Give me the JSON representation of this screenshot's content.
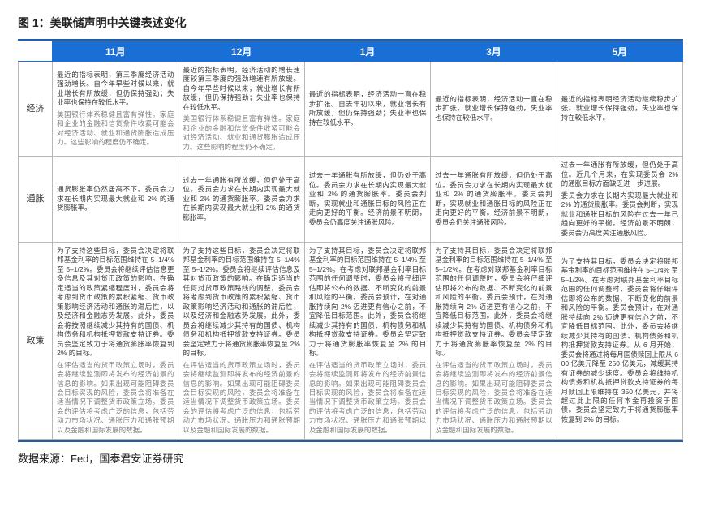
{
  "caption": "图 1：美联储声明中关键表述变化",
  "source": "数据来源：Fed，国泰君安证券研究",
  "colors": {
    "accent": "#1a6fd6",
    "frame": "#1a5fb4",
    "border": "#b8b8b8",
    "text": "#3a3a3a",
    "faded": "#7d7d7d",
    "background": "#ffffff"
  },
  "months": [
    "11月",
    "12月",
    "1月",
    "3月",
    "5月"
  ],
  "rows": [
    {
      "label": "经济",
      "cells": [
        [
          {
            "text": "最近的指标表明，第三季度经济活动强劲增长。自今年早些时候以来，就业增长有所放缓，但仍保持强劲；失业率也保持在较低水平。",
            "faded": false
          },
          {
            "text": "美国银行体系稳健且富有弹性。家庭和企业的金融和信贷条件收紧可能会对经济活动、就业和通货膨胀造成压力。这些影响的程度仍不确定。",
            "faded": true
          }
        ],
        [
          {
            "text": "最近的指标表明，经济活动的增长速度较第三季度的强劲增速有所放缓。自今年早些时候以来，就业增长有所放缓，但仍保持强劲；失业率也保持在较低水平。",
            "faded": false
          },
          {
            "text": "美国银行体系稳健且富有弹性。家庭和企业的金融和信贷条件收紧可能会对经济活动、就业和通货膨胀造成压力。这些影响的程度仍不确定。",
            "faded": true
          }
        ],
        [
          {
            "text": "最近的指标表明，经济活动一直在稳步扩张。自去年初以来，就业增长有所放缓，但仍保持强劲；失业率也保持在较低水平。",
            "faded": false
          }
        ],
        [
          {
            "text": "最近的指标表明，经济活动一直在稳步扩张。就业增长保持强劲，失业率也保持在较低水平。",
            "faded": false
          }
        ],
        [
          {
            "text": "最近的指标表明经济活动继续稳步扩张。就业增长保持强劲，失业率也保持在较低水平。",
            "faded": false
          }
        ]
      ]
    },
    {
      "label": "通胀",
      "cells": [
        [
          {
            "text": "通货膨胀率仍然居高不下。委员会力求在长期内实现最大就业和 2% 的通货膨胀率。",
            "faded": false
          }
        ],
        [
          {
            "text": "过去一年通胀有所放缓，但仍处于高位。委员会力求在长期内实现最大就业和 2% 的通货膨胀率。委员会力求在长期内实现最大就业和 2% 的通货膨胀率。",
            "faded": false
          }
        ],
        [
          {
            "text": "过去一年通胀有所放缓，但仍处于高位。委员会力求在长期内实现最大就业和 2% 的通货膨胀率。委员会判断，实现就业和通胀目标的风险正在走向更好的平衡。经济前景不明朗，委员会仍高度关注通胀风险。",
            "faded": false
          }
        ],
        [
          {
            "text": "过去一年通胀有所放缓，但仍处于高位。委员会力求在长期内实现最大就业和 2% 的通货膨胀率。委员会判断，实现就业和通胀目标的风险正在走向更好的平衡。经济前景不明朗，委员会仍关注通胀风险。",
            "faded": false
          }
        ],
        [
          {
            "text": "过去一年通胀有所放缓，但仍处于高位。近几个月来，在实现委员会 2% 的通胀目标方面缺乏进一步进展。",
            "faded": false
          },
          {
            "text": "委员会力求在长期内实现最大就业和 2% 的通货膨胀率。委员会判断，实现就业和通胀目标的风险在过去一年已趋向更好的平衡。经济前景不明朗，委员会仍高度关注通胀风险。",
            "faded": false
          }
        ]
      ]
    },
    {
      "label": "政策",
      "cells": [
        [
          {
            "text": "为了支持这些目标，委员会决定将联邦基金利率的目标范围维持在 5–1/4% 至 5–1/2%。委员会将继续评估信息更多信息及其对货币政策的影响。在确定适当的政策紧缩程度时，委员会将考虑到货币政策的累积紧缩、货币政策影响经济活动和通胀的滞后性，以及经济和金融态势发展。此外，委员会将按照继续减少其持有的国债、机构债务和机构抵押贷款支持证券。委员会坚定致力于将通货膨胀率恢复到 2% 的目标。",
            "faded": false
          },
          {
            "text": "在评估适当的货币政策立场时，委员会将继续监测即将发布的经济前景的信息的影响。如果出现可能阻碍委员会目标实现的风险，委员会将准备在适当情况下调整货币政策立场。委员会的评估将考虑广泛的信息，包括劳动力市场状况、通胀压力和通胀预期以及金融和国际发展的数据。",
            "faded": true
          }
        ],
        [
          {
            "text": "为了支持这些目标，委员会决定将联邦基金利率的目标范围维持在 5–1/4% 至 5–1/2%。委员会将继续评估信息及其对货币政策的影响。在确定适当的任何对货币政策路线的调整，委员会将考虑到货币政策的累积紧缩、货币政策影响经济活动和通胀的滞后性，以及经济和金融态势发展。此外，委员会将继续减少其持有的国债、机构债务和机构抵押贷款支持证券。委员会坚定致力于将通货膨胀率恢复至 2% 的目标。",
            "faded": false
          },
          {
            "text": "在评估适当的货币政策立场时，委员会将继续监测即将发布的经济前景的信息的影响。如果出现可能阻碍委员会目标实现的风险，委员会将准备在适当情况下调整货币政策立场。委员会的评估将考虑广泛的信息，包括劳动力市场状况、通胀压力和通胀预期以及金融和国际发展的数据。",
            "faded": true
          }
        ],
        [
          {
            "text": "为了支持其目标，委员会决定将联邦基金利率的目标范围维持在 5–1/4% 至 5–1/2%。在考虑对联邦基金利率目标范围的任何调整时，委员会将仔细评估即将公布的数据、不断变化的前景和风险的平衡。委员会预计，在对通胀持续向 2% 迈进更有信心之前，不宜降低目标范围。此外，委员会将继续减少其持有的国债、机构债务和机构抵押贷款支持证券。委员会坚定致力于将通货膨胀率恢复至 2% 的目标。",
            "faded": false
          },
          {
            "text": "在评估适当的货币政策立场时，委员会将继续监测即将发布的经济前景信息的影响。如果出现可能阻碍委员会目标实现的风险，委员会将准备在适当情况下调整货币政策立场。委员会的评估将考虑广泛的信息，包括劳动力市场状况、通胀压力和通胀预期以及金融和国际发展的数据。",
            "faded": true
          }
        ],
        [
          {
            "text": "为了支持其目标，委员会决定将联邦基金利率的目标范围维持在 5–1/4% 至 5–1/2%。在考虑对联邦基金利率目标范围的任何调整时，委员会将仔细评估即将公布的数据、不断变化的前景和风险的平衡。委员会预计，在对通胀持续向 2% 迈进更有信心之前，不宜降低目标范围。此外，委员会将继续减少其持有的国债、机构债务和机构抵押贷款支持证券。委员会坚定致力于将通货膨胀率恢复至 2% 的目标。",
            "faded": false
          },
          {
            "text": "在评估适当的货币政策立场时，委员会将继续监测即将发布的经济前景信息的影响。如果出现可能阻碍委员会目标实现的风险，委员会将准备在适当情况下调整货币政策立场。委员会的评估将考虑广泛的信息，包括劳动力市场状况、通胀压力和通胀预期以及金融和国际发展的数据。",
            "faded": true
          }
        ],
        [
          {
            "text": "为了支持其目标，委员会决定将联邦基金利率的目标范围维持在 5–1/4% 至 5–1/2%。在考虑对联邦基金利率目标范围的任何调整时，委员会将仔细评估即将公布的数据、不断变化的前景和风险的平衡。委员会预计，在对通胀持续向 2% 迈进更有信心之前，不宜降低目标范围。此外，委员会将继续减少其持有的国债、机构债务和机构抵押贷款支持证券。从 6 月开始，委员会将通过将每月国债赎回上限从 600 亿美元降至 250 亿美元，减缓其持有证券的减少速度。委员会将维持机构债务和机构抵押贷款支持证券的每月赎回上限维持在 350 亿美元，并将超过此上限的任何本金再投资于国债。委员会坚定致力于将通货膨胀率恢复到 2% 的目标。",
            "faded": false
          }
        ]
      ]
    }
  ]
}
